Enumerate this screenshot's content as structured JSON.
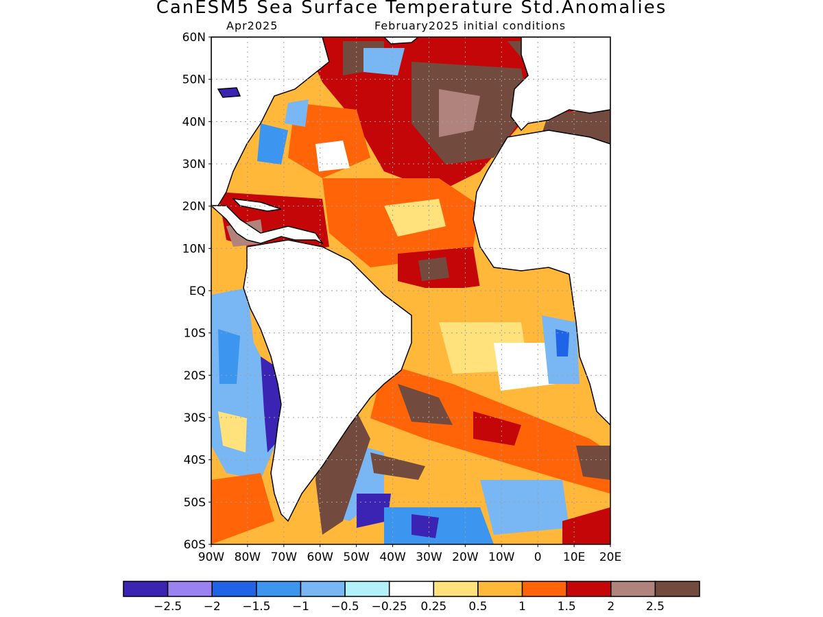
{
  "title": "CanESM5 Sea Surface Temperature Std.Anomalies",
  "subtitle_left": "Apr2025",
  "subtitle_right": "February2025 initial conditions",
  "axes": {
    "lat_labels": [
      "60N",
      "50N",
      "40N",
      "30N",
      "20N",
      "10N",
      "EQ",
      "10S",
      "20S",
      "30S",
      "40S",
      "50S",
      "60S"
    ],
    "lon_labels": [
      "90W",
      "80W",
      "70W",
      "60W",
      "50W",
      "40W",
      "30W",
      "20W",
      "10W",
      "0",
      "10E",
      "20E"
    ],
    "lat_range": [
      -60,
      60
    ],
    "lon_range": [
      -90,
      20
    ],
    "grid": true
  },
  "colorbar": {
    "labels": [
      "-2.5",
      "-2",
      "-1.5",
      "-1",
      "-0.5",
      "-0.25",
      "0.25",
      "0.5",
      "1",
      "1.5",
      "2",
      "2.5"
    ],
    "colors": [
      "#3b24b4",
      "#9a83f0",
      "#1f64e6",
      "#3c96f0",
      "#78b6f4",
      "#b4f0fa",
      "#ffffff",
      "#ffe27c",
      "#ffb83a",
      "#ff6408",
      "#c40608",
      "#b0847c",
      "#734a3e"
    ]
  },
  "colors": {
    "land": "#ffffff",
    "coastline": "#000000",
    "gridline": "#a0a0a0"
  }
}
